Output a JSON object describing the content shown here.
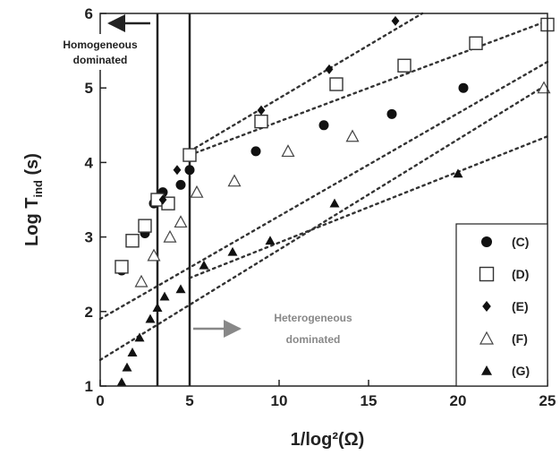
{
  "chart_data": {
    "type": "scatter",
    "xlabel": "1/log²(Ω)",
    "ylabel": "Log T",
    "ylabel_sub": "ind",
    "ylabel_suffix": " (s)",
    "xlim": [
      0,
      25
    ],
    "ylim": [
      1,
      6
    ],
    "xticks": [
      0,
      5,
      10,
      15,
      20,
      25
    ],
    "yticks": [
      1,
      2,
      3,
      4,
      5,
      6
    ],
    "grid": false,
    "legend_position": "bottom-right",
    "vertical_lines": [
      3.2,
      5.0
    ],
    "annotations": {
      "homogeneous": [
        "Homogeneous",
        "dominated"
      ],
      "heterogeneous": [
        "Heterogeneous",
        "dominated"
      ],
      "arrow_color": "#888888"
    },
    "series": [
      {
        "name": "(C)",
        "marker": "circle-filled",
        "points": [
          [
            1.2,
            2.55
          ],
          [
            2.5,
            3.05
          ],
          [
            3.0,
            3.45
          ],
          [
            3.5,
            3.6
          ],
          [
            4.5,
            3.7
          ],
          [
            5.0,
            3.9
          ],
          [
            8.7,
            4.15
          ],
          [
            12.5,
            4.5
          ],
          [
            16.3,
            4.65
          ],
          [
            20.3,
            5.0
          ]
        ],
        "fit": [
          [
            0,
            1.9
          ],
          [
            25,
            5.35
          ]
        ]
      },
      {
        "name": "(D)",
        "marker": "square-open",
        "points": [
          [
            1.2,
            2.6
          ],
          [
            1.8,
            2.95
          ],
          [
            2.5,
            3.15
          ],
          [
            3.2,
            3.5
          ],
          [
            3.8,
            3.45
          ],
          [
            5.0,
            4.1
          ],
          [
            9.0,
            4.55
          ],
          [
            13.2,
            5.05
          ],
          [
            17.0,
            5.3
          ],
          [
            21.0,
            5.6
          ],
          [
            25.0,
            5.85
          ]
        ],
        "fit": [
          [
            5,
            4.1
          ],
          [
            25,
            5.9
          ]
        ]
      },
      {
        "name": "(E)",
        "marker": "diamond-filled",
        "points": [
          [
            3.5,
            3.5
          ],
          [
            4.3,
            3.9
          ],
          [
            9.0,
            4.7
          ],
          [
            12.8,
            5.25
          ],
          [
            16.5,
            5.9
          ]
        ],
        "fit": [
          [
            5,
            4.15
          ],
          [
            18,
            6.0
          ]
        ]
      },
      {
        "name": "(F)",
        "marker": "triangle-open",
        "points": [
          [
            2.3,
            2.4
          ],
          [
            3.0,
            2.75
          ],
          [
            3.9,
            3.0
          ],
          [
            4.5,
            3.2
          ],
          [
            5.4,
            3.6
          ],
          [
            7.5,
            3.75
          ],
          [
            10.5,
            4.15
          ],
          [
            14.1,
            4.35
          ],
          [
            24.8,
            5.0
          ]
        ],
        "fit": [
          [
            0,
            1.35
          ],
          [
            25,
            5.05
          ]
        ]
      },
      {
        "name": "(G)",
        "marker": "triangle-filled",
        "points": [
          [
            1.2,
            1.05
          ],
          [
            1.5,
            1.25
          ],
          [
            1.8,
            1.45
          ],
          [
            2.2,
            1.65
          ],
          [
            2.8,
            1.9
          ],
          [
            3.2,
            2.05
          ],
          [
            3.6,
            2.2
          ],
          [
            4.5,
            2.3
          ],
          [
            5.8,
            2.62
          ],
          [
            7.4,
            2.8
          ],
          [
            9.5,
            2.95
          ],
          [
            13.1,
            3.45
          ],
          [
            20.0,
            3.85
          ]
        ],
        "fit": [
          [
            5,
            2.45
          ],
          [
            25,
            4.35
          ]
        ]
      }
    ]
  }
}
